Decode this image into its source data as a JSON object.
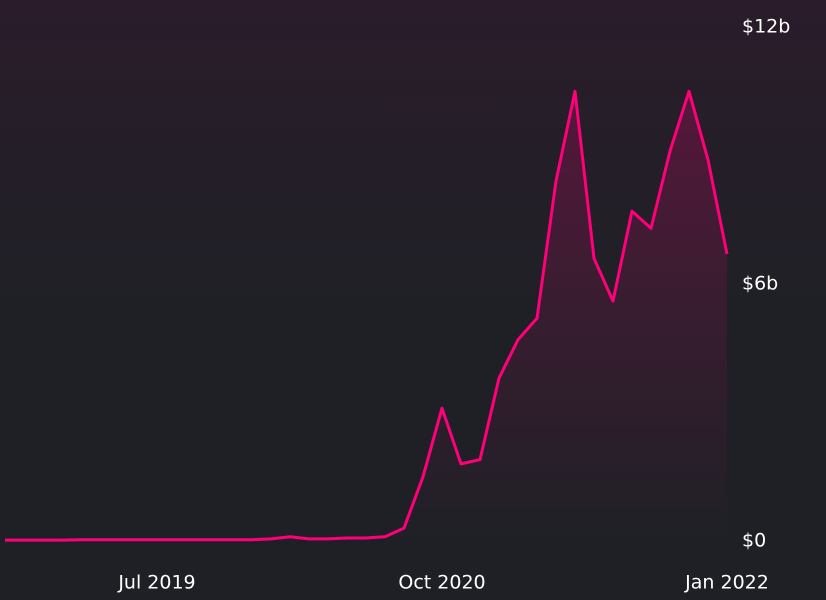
{
  "chart_data": {
    "type": "area",
    "x": [
      "2018-11",
      "2018-12",
      "2019-01",
      "2019-02",
      "2019-03",
      "2019-04",
      "2019-05",
      "2019-06",
      "2019-07",
      "2019-08",
      "2019-09",
      "2019-10",
      "2019-11",
      "2019-12",
      "2020-01",
      "2020-02",
      "2020-03",
      "2020-04",
      "2020-05",
      "2020-06",
      "2020-07",
      "2020-08",
      "2020-09",
      "2020-10",
      "2020-11",
      "2020-12",
      "2021-01",
      "2021-02",
      "2021-03",
      "2021-04",
      "2021-05",
      "2021-06",
      "2021-07",
      "2021-08",
      "2021-09",
      "2021-10",
      "2021-11",
      "2021-12",
      "2022-01"
    ],
    "series": [
      {
        "color": "#ff007a",
        "values": [
          0.02,
          0.02,
          0.02,
          0.02,
          0.03,
          0.03,
          0.03,
          0.03,
          0.03,
          0.03,
          0.03,
          0.03,
          0.03,
          0.03,
          0.05,
          0.1,
          0.05,
          0.05,
          0.07,
          0.07,
          0.1,
          0.3,
          1.5,
          3.1,
          1.8,
          1.9,
          3.8,
          4.7,
          5.2,
          8.4,
          10.5,
          6.6,
          5.6,
          7.7,
          7.3,
          9.1,
          10.5,
          8.9,
          6.7
        ]
      }
    ],
    "xlim": [
      "2018-11",
      "2022-01"
    ],
    "xticks": [
      {
        "value": "2019-07",
        "label": "Jul 2019"
      },
      {
        "value": "2020-10",
        "label": "Oct 2020"
      },
      {
        "value": "2022-01",
        "label": "Jan 2022"
      }
    ],
    "ylim": [
      0,
      12
    ],
    "yticks": [
      {
        "value": 0,
        "label": "$0"
      },
      {
        "value": 6,
        "label": "$6b"
      },
      {
        "value": 12,
        "label": "$12b"
      }
    ],
    "grid": false
  }
}
